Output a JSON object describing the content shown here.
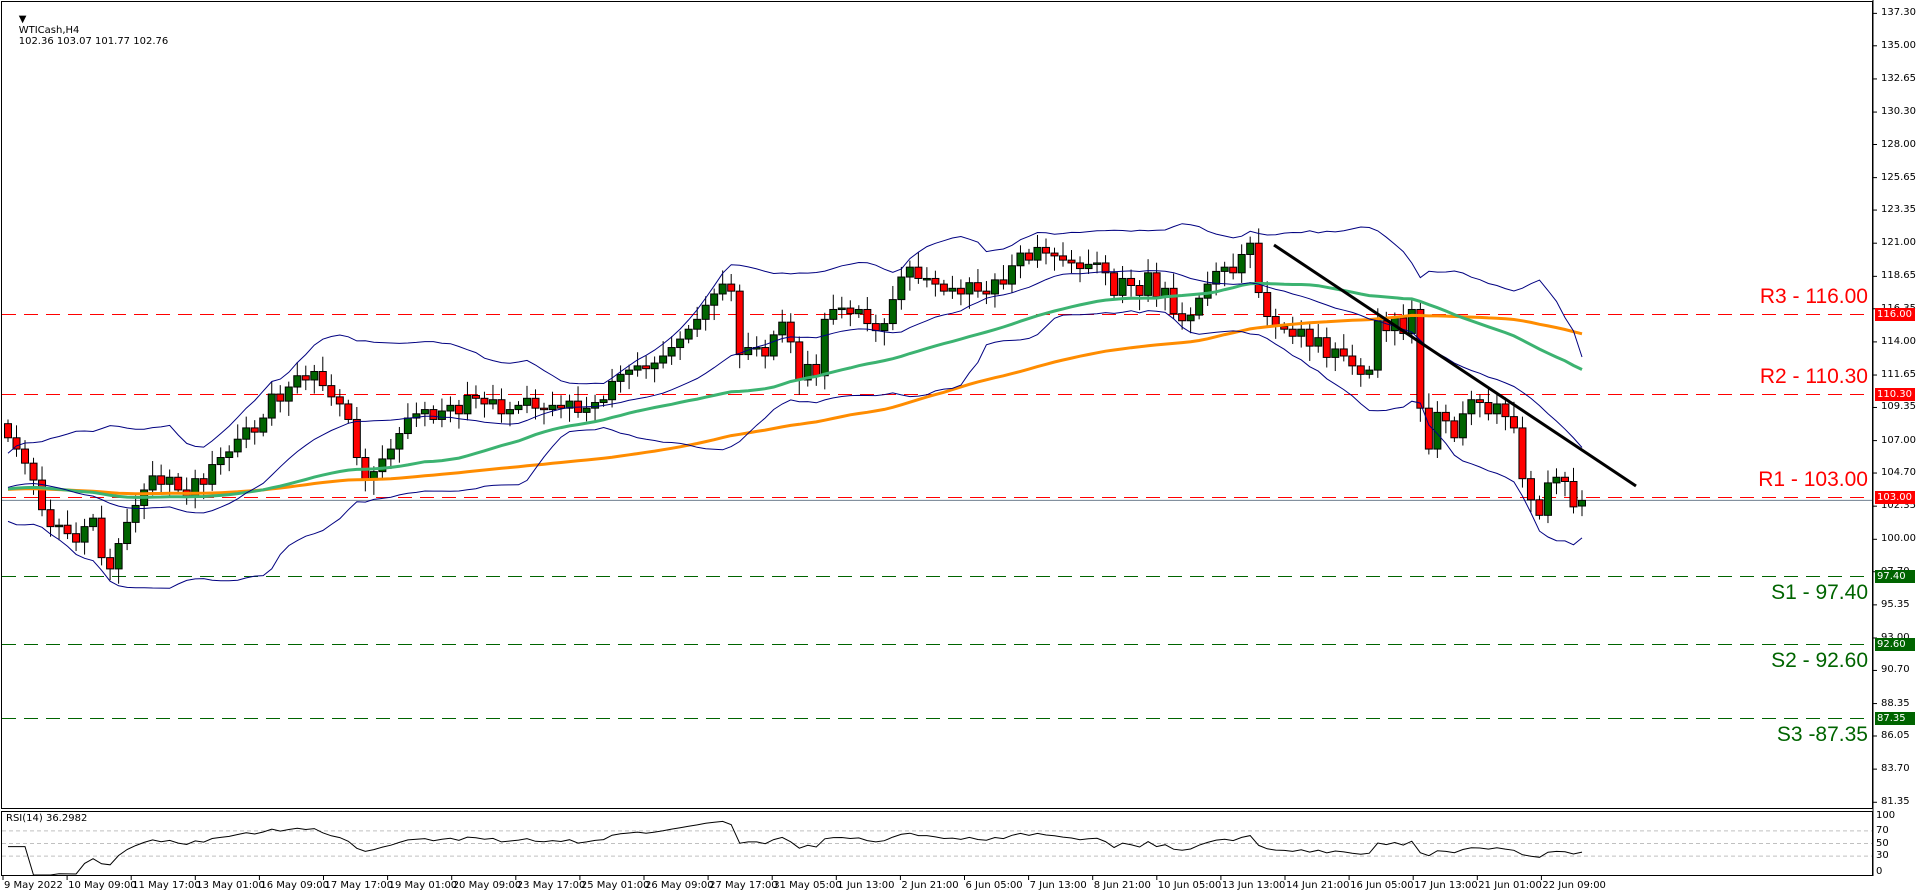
{
  "header": {
    "symbol": "WTICash,H4",
    "ohlc_text": "102.36 103.07 101.77 102.76"
  },
  "price_axis": {
    "ticks": [
      "137.30",
      "135.00",
      "132.65",
      "130.30",
      "128.00",
      "125.65",
      "123.35",
      "121.00",
      "118.65",
      "116.35",
      "114.00",
      "111.65",
      "109.35",
      "107.00",
      "104.70",
      "102.35",
      "100.00",
      "97.70",
      "95.35",
      "93.00",
      "90.70",
      "88.35",
      "86.05",
      "83.70",
      "81.35"
    ]
  },
  "levels": [
    {
      "name": "R3",
      "label": "R3 - 116.00",
      "price": 116.0,
      "tag": "116.00",
      "color": "#ff0000",
      "tag_bg": "#ff0000"
    },
    {
      "name": "R2",
      "label": "R2 - 110.30",
      "price": 110.3,
      "tag": "110.30",
      "color": "#ff0000",
      "tag_bg": "#ff0000"
    },
    {
      "name": "R1",
      "label": "R1 - 103.00",
      "price": 103.0,
      "tag": "103.00",
      "color": "#ff0000",
      "tag_bg": "#ff0000"
    },
    {
      "name": "S1",
      "label": "S1 - 97.40",
      "price": 97.4,
      "tag": "97.40",
      "color": "#006400",
      "tag_bg": "#006400"
    },
    {
      "name": "S2",
      "label": "S2 - 92.60",
      "price": 92.6,
      "tag": "92.60",
      "color": "#006400",
      "tag_bg": "#006400"
    },
    {
      "name": "S3",
      "label": "S3 -87.35",
      "price": 87.35,
      "tag": "87.35",
      "color": "#006400",
      "tag_bg": "#006400"
    }
  ],
  "rsi": {
    "title": "RSI(14) 36.2982",
    "axis": [
      "100",
      "70",
      "50",
      "30",
      "0"
    ]
  },
  "time_axis": [
    "9 May 2022",
    "10 May 09:00",
    "11 May 17:00",
    "13 May 01:00",
    "16 May 09:00",
    "17 May 17:00",
    "19 May 01:00",
    "20 May 09:00",
    "23 May 17:00",
    "25 May 01:00",
    "26 May 09:00",
    "27 May 17:00",
    "31 May 05:00",
    "1 Jun 13:00",
    "2 Jun 21:00",
    "6 Jun 05:00",
    "7 Jun 13:00",
    "8 Jun 21:00",
    "10 Jun 05:00",
    "13 Jun 13:00",
    "14 Jun 21:00",
    "16 Jun 05:00",
    "17 Jun 13:00",
    "21 Jun 01:00",
    "22 Jun 09:00"
  ],
  "colors": {
    "bull": "#006400",
    "bear": "#ff0000",
    "bands": "#000080",
    "ma_green": "#3cb371",
    "ma_orange": "#ff8c00",
    "trend": "#000000",
    "bid_line": "#708090"
  },
  "chart_data": {
    "type": "candlestick",
    "title": "WTICash,H4",
    "timeframe": "H4",
    "ylim": [
      81.35,
      137.3
    ],
    "last_price": 102.76,
    "last_ohlc": {
      "open": 102.36,
      "high": 103.07,
      "low": 101.77,
      "close": 102.76
    },
    "support_resistance": {
      "R3": 116.0,
      "R2": 110.3,
      "R1": 103.0,
      "S1": 97.4,
      "S2": 92.6,
      "S3": 87.35
    },
    "trendline": {
      "start": {
        "date": "13 Jun",
        "price": 120.9
      },
      "end": {
        "date": "22 Jun+",
        "price": 104.6
      }
    },
    "indicators": [
      "Bollinger Bands",
      "MA green",
      "MA orange",
      "RSI(14)"
    ],
    "rsi_last": 36.2982,
    "closes": [
      107.2,
      106.4,
      105.4,
      104.2,
      102.1,
      100.9,
      101.0,
      100.4,
      99.8,
      100.9,
      101.5,
      98.7,
      97.9,
      99.7,
      101.2,
      102.4,
      103.5,
      104.5,
      103.9,
      104.4,
      103.5,
      103.0,
      104.3,
      103.9,
      105.3,
      105.8,
      106.2,
      107.1,
      107.9,
      107.6,
      108.6,
      110.3,
      109.8,
      110.8,
      111.6,
      111.3,
      111.9,
      110.9,
      110.1,
      109.6,
      108.5,
      105.8,
      104.2,
      104.8,
      105.7,
      106.4,
      107.5,
      108.6,
      108.9,
      109.2,
      108.5,
      109.1,
      109.5,
      108.9,
      110.2,
      110.0,
      109.6,
      109.9,
      108.9,
      109.2,
      109.5,
      110.0,
      109.3,
      109.2,
      109.5,
      109.3,
      109.8,
      109.0,
      109.3,
      109.7,
      109.9,
      111.2,
      111.7,
      112.0,
      112.3,
      112.1,
      112.5,
      113.0,
      113.6,
      114.2,
      114.9,
      115.6,
      116.6,
      117.4,
      118.1,
      117.6,
      113.1,
      113.6,
      113.6,
      113.0,
      114.5,
      115.4,
      114.0,
      111.3,
      112.4,
      111.6,
      115.6,
      116.3,
      116.4,
      116.0,
      116.3,
      115.3,
      114.8,
      115.3,
      117.0,
      118.6,
      119.3,
      118.5,
      118.5,
      118.1,
      117.6,
      117.8,
      117.4,
      118.2,
      117.6,
      117.4,
      118.4,
      118.1,
      119.4,
      120.3,
      119.8,
      120.7,
      120.3,
      120.1,
      119.8,
      119.6,
      119.2,
      119.5,
      119.6,
      118.9,
      117.3,
      118.5,
      118.0,
      117.3,
      118.9,
      117.2,
      117.8,
      116.0,
      115.5,
      115.9,
      117.1,
      118.1,
      119.0,
      119.3,
      118.9,
      120.2,
      121.0,
      117.5,
      115.8,
      115.1,
      114.9,
      114.4,
      114.9,
      113.7,
      114.3,
      112.9,
      113.5,
      113.0,
      112.3,
      111.7,
      112.0,
      115.5,
      114.8,
      115.7,
      114.6,
      116.3,
      109.3,
      106.4,
      109.0,
      108.4,
      107.2,
      108.9,
      109.9,
      109.7,
      108.9,
      109.6,
      108.7,
      107.9,
      104.3,
      102.8,
      101.7,
      104.0,
      104.4,
      104.1,
      102.3,
      102.76
    ]
  }
}
